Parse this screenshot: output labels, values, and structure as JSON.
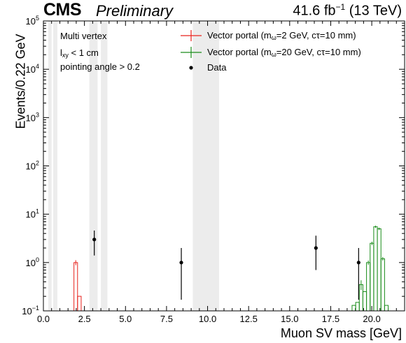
{
  "header": {
    "experiment": "CMS",
    "status": "Preliminary",
    "lumi_value": "41.6 fb",
    "lumi_exp": "−1",
    "lumi_energy": "(13 TeV)"
  },
  "cuts": [
    "Multi vertex",
    "< 1 cm",
    "pointing angle > 0.2"
  ],
  "cut_var": {
    "base": "l",
    "sub": "xy"
  },
  "legend": {
    "signal_prefix": "Vector portal (m",
    "signal_sub": "ω",
    "mass_1": "=2 GeV, cτ=10 mm)",
    "mass_2": "=20 GeV, cτ=10 mm)",
    "data_label": "Data"
  },
  "colors": {
    "signal_2gev": "#e8221c",
    "signal_20gev": "#1a8c1a",
    "data": "#000000",
    "veto_band": "#ececec"
  },
  "chart_data": {
    "type": "histogram",
    "xlabel": "Muon SV mass [GeV]",
    "ylabel": "Events/0.22 GeV",
    "xlim": [
      0,
      22
    ],
    "ylim": [
      0.1,
      100000
    ],
    "yscale": "log",
    "x_ticks": [
      0,
      2.5,
      5,
      7.5,
      10,
      12.5,
      15,
      17.5,
      20
    ],
    "x_tick_labels": [
      "0.0",
      "2.5",
      "5.0",
      "7.5",
      "10.0",
      "12.5",
      "15.0",
      "17.5",
      "20.0"
    ],
    "y_ticks": [
      0.1,
      1,
      10,
      100,
      1000,
      10000,
      100000
    ],
    "y_tick_labels": [
      {
        "base": "10",
        "exp": "−1"
      },
      {
        "base": "10",
        "exp": "0"
      },
      {
        "base": "10",
        "exp": "1"
      },
      {
        "base": "10",
        "exp": "2"
      },
      {
        "base": "10",
        "exp": "3"
      },
      {
        "base": "10",
        "exp": "4"
      },
      {
        "base": "10",
        "exp": "5"
      }
    ],
    "veto_bands": [
      [
        0.3,
        0.5
      ],
      [
        0.6,
        0.85
      ],
      [
        2.8,
        3.3
      ],
      [
        3.5,
        3.9
      ],
      [
        9.1,
        10.7
      ]
    ],
    "series": [
      {
        "name": "Vector portal (mω=2 GeV, cτ=10 mm)",
        "kind": "step",
        "bins": [
          {
            "x0": 1.86,
            "x1": 2.08,
            "y": 1.0,
            "err": 0.12
          },
          {
            "x0": 2.08,
            "x1": 2.3,
            "y": 0.2,
            "err": 0.0
          }
        ]
      },
      {
        "name": "Vector portal (mω=20 GeV, cτ=10 mm)",
        "kind": "step",
        "bins": [
          {
            "x0": 18.8,
            "x1": 19.02,
            "y": 0.13,
            "err": 0.0
          },
          {
            "x0": 19.02,
            "x1": 19.24,
            "y": 0.15,
            "err": 0.0
          },
          {
            "x0": 19.24,
            "x1": 19.46,
            "y": 0.35,
            "err": 0.08
          },
          {
            "x0": 19.46,
            "x1": 19.68,
            "y": 0.25,
            "err": 0.0
          },
          {
            "x0": 19.68,
            "x1": 19.9,
            "y": 1.0,
            "err": 0.1
          },
          {
            "x0": 19.9,
            "x1": 20.12,
            "y": 2.5,
            "err": 0.2
          },
          {
            "x0": 20.12,
            "x1": 20.34,
            "y": 5.5,
            "err": 0.3
          },
          {
            "x0": 20.34,
            "x1": 20.56,
            "y": 5.0,
            "err": 0.3
          },
          {
            "x0": 20.56,
            "x1": 20.78,
            "y": 1.2,
            "err": 0.1
          },
          {
            "x0": 20.78,
            "x1": 21.0,
            "y": 0.13,
            "err": 0.0
          }
        ]
      },
      {
        "name": "Data",
        "kind": "points",
        "points": [
          {
            "x": 3.1,
            "y": 3,
            "err_lo": 1.6,
            "err_hi": 1.6
          },
          {
            "x": 8.4,
            "y": 1,
            "err_lo": 0.83,
            "err_hi": 1.0
          },
          {
            "x": 16.6,
            "y": 2,
            "err_lo": 1.3,
            "err_hi": 1.6
          },
          {
            "x": 19.2,
            "y": 1,
            "err_lo": 0.83,
            "err_hi": 1.0
          }
        ]
      }
    ]
  }
}
